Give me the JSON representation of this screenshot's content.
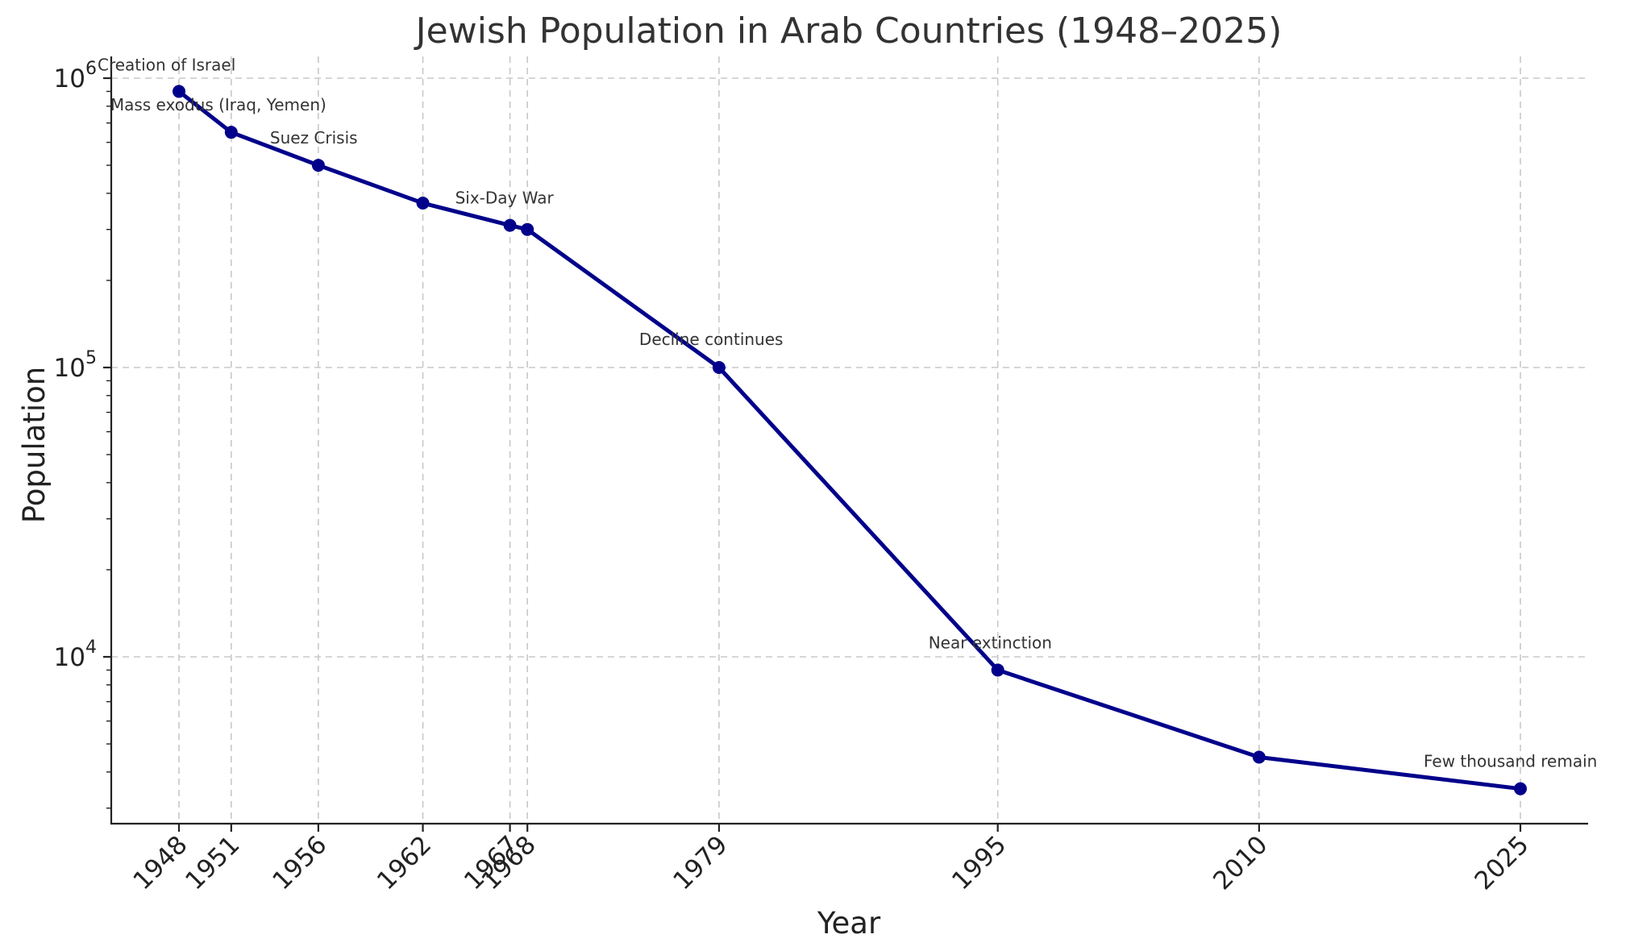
{
  "colors": {
    "series": "#00008b",
    "grid": "#c8c8c8",
    "axis": "#222222",
    "title": "#333333",
    "annotation": "#333333"
  },
  "chart_data": {
    "type": "line",
    "title": "Jewish Population in Arab Countries (1948–2025)",
    "xlabel": "Year",
    "ylabel": "Population",
    "y_scale": "log",
    "ylim": [
      2700,
      1200000
    ],
    "xlim": [
      1943,
      2029
    ],
    "grid": true,
    "legend": "none",
    "x": [
      1948,
      1951,
      1956,
      1962,
      1967,
      1968,
      1979,
      1995,
      2010,
      2025
    ],
    "x_tick_labels": [
      "1948",
      "1951",
      "1956",
      "1962",
      "1967",
      "1968",
      "1979",
      "1995",
      "2010",
      "2025"
    ],
    "y_ticks": [
      {
        "base": "10",
        "exp": "4",
        "value": 10000
      },
      {
        "base": "10",
        "exp": "5",
        "value": 100000
      },
      {
        "base": "10",
        "exp": "6",
        "value": 1000000
      }
    ],
    "series": [
      {
        "values": [
          900000,
          650000,
          500000,
          370000,
          310000,
          300000,
          100000,
          9000,
          4500,
          3500
        ]
      }
    ],
    "annotations": [
      {
        "text": "Creation of Israel",
        "x": 1948,
        "y": 900000
      },
      {
        "text": "Mass exodus (Iraq, Yemen)",
        "x": 1951,
        "y": 650000
      },
      {
        "text": "Suez Crisis",
        "x": 1956,
        "y": 500000
      },
      {
        "text": "Six-Day War",
        "x": 1967,
        "y": 310000
      },
      {
        "text": "Decline continues",
        "x": 1979,
        "y": 100000
      },
      {
        "text": "Near extinction",
        "x": 1995,
        "y": 9000
      },
      {
        "text": "Few thousand remain",
        "x": 2025,
        "y": 3500
      }
    ]
  }
}
